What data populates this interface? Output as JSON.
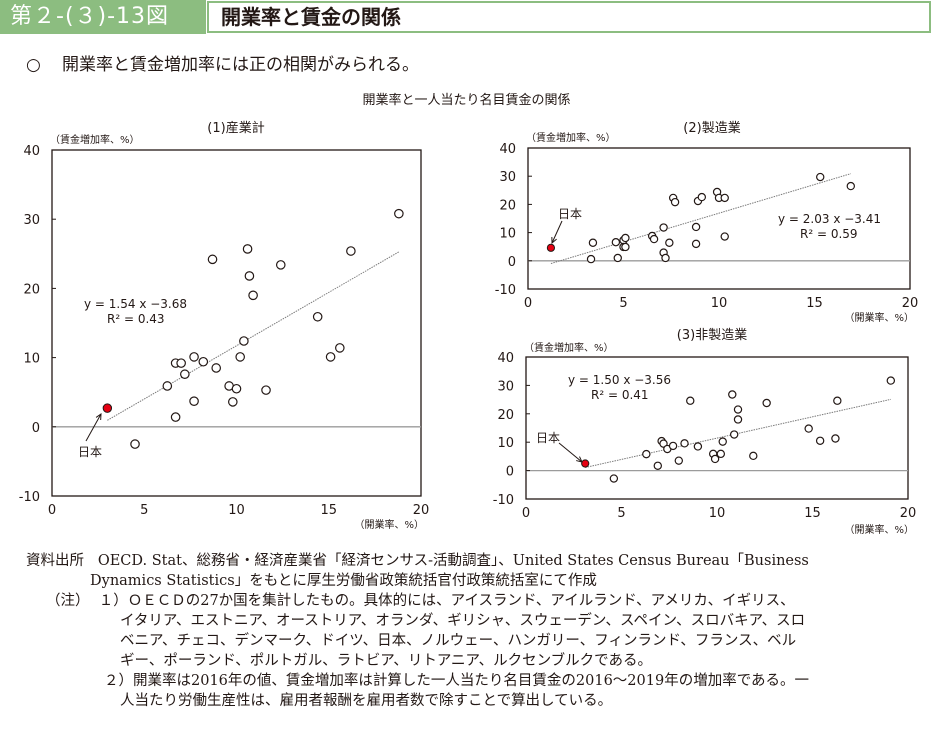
{
  "header": {
    "figure_number": "第２-(３)-13図",
    "title": "開業率と賃金の関係"
  },
  "summary": {
    "bullet": "○",
    "text": "開業率と賃金増加率には正の相関がみられる。"
  },
  "overall_title": "開業率と一人当たり名目賃金の関係",
  "chart_data": [
    {
      "type": "scatter",
      "title": "(1)産業計",
      "xlabel": "（開業率、%）",
      "ylabel": "（賃金増加率、%）",
      "xlim": [
        0,
        20
      ],
      "ylim": [
        -10,
        40
      ],
      "xticks": [
        "0",
        "5",
        "10",
        "15",
        "20"
      ],
      "yticks": [
        "-10",
        "0",
        "10",
        "20",
        "30",
        "40"
      ],
      "grid": false,
      "trendline": {
        "slope": 1.54,
        "intercept": -3.68,
        "x_range": [
          3.0,
          18.8
        ]
      },
      "equation": "y = 1.54 x −3.68",
      "r2": "R² = 0.43",
      "highlight": {
        "label": "日本",
        "x": 3.0,
        "y": 2.7,
        "color": "#e60012"
      },
      "points": [
        [
          4.5,
          -2.5
        ],
        [
          6.25,
          5.9
        ],
        [
          6.7,
          1.4
        ],
        [
          6.7,
          9.2
        ],
        [
          7.0,
          9.2
        ],
        [
          7.2,
          7.6
        ],
        [
          7.7,
          10.1
        ],
        [
          7.7,
          3.7
        ],
        [
          8.2,
          9.4
        ],
        [
          8.7,
          24.2
        ],
        [
          8.9,
          8.5
        ],
        [
          9.6,
          5.9
        ],
        [
          9.8,
          3.6
        ],
        [
          10.0,
          5.5
        ],
        [
          10.2,
          10.1
        ],
        [
          10.4,
          12.4
        ],
        [
          10.6,
          25.7
        ],
        [
          10.7,
          21.8
        ],
        [
          10.9,
          19.0
        ],
        [
          11.6,
          5.3
        ],
        [
          12.4,
          23.4
        ],
        [
          14.4,
          15.9
        ],
        [
          15.1,
          10.1
        ],
        [
          15.6,
          11.4
        ],
        [
          16.2,
          25.4
        ],
        [
          18.8,
          30.8
        ]
      ]
    },
    {
      "type": "scatter",
      "title": "(2)製造業",
      "xlabel": "（開業率、%）",
      "ylabel": "（賃金増加率、%）",
      "xlim": [
        0,
        20
      ],
      "ylim": [
        -10,
        40
      ],
      "xticks": [
        "0",
        "5",
        "10",
        "15",
        "20"
      ],
      "yticks": [
        "-10",
        "0",
        "10",
        "20",
        "30",
        "40"
      ],
      "grid": false,
      "trendline": {
        "slope": 2.03,
        "intercept": -3.41,
        "x_range": [
          1.2,
          16.9
        ]
      },
      "equation": "y = 2.03 x −3.41",
      "r2": "R² = 0.59",
      "highlight": {
        "label": "日本",
        "x": 1.2,
        "y": 4.6,
        "color": "#e60012"
      },
      "points": [
        [
          3.3,
          0.6
        ],
        [
          3.4,
          6.4
        ],
        [
          4.6,
          6.6
        ],
        [
          4.7,
          1.0
        ],
        [
          5.0,
          7.3
        ],
        [
          5.0,
          4.9
        ],
        [
          5.1,
          8.1
        ],
        [
          5.1,
          4.9
        ],
        [
          6.5,
          8.8
        ],
        [
          6.6,
          7.7
        ],
        [
          7.1,
          11.8
        ],
        [
          7.1,
          2.9
        ],
        [
          7.2,
          1.0
        ],
        [
          7.4,
          6.4
        ],
        [
          7.6,
          22.3
        ],
        [
          7.7,
          20.8
        ],
        [
          8.8,
          12.0
        ],
        [
          8.8,
          6.0
        ],
        [
          8.9,
          21.2
        ],
        [
          9.1,
          22.6
        ],
        [
          9.9,
          24.4
        ],
        [
          10.0,
          22.3
        ],
        [
          10.3,
          22.3
        ],
        [
          10.3,
          8.6
        ],
        [
          15.3,
          29.7
        ],
        [
          16.9,
          26.5
        ]
      ]
    },
    {
      "type": "scatter",
      "title": "(3)非製造業",
      "xlabel": "（開業率、%）",
      "ylabel": "（賃金増加率、%）",
      "xlim": [
        0,
        20
      ],
      "ylim": [
        -10,
        40
      ],
      "xticks": [
        "0",
        "5",
        "10",
        "15",
        "20"
      ],
      "yticks": [
        "-10",
        "0",
        "10",
        "20",
        "30",
        "40"
      ],
      "grid": false,
      "trendline": {
        "slope": 1.5,
        "intercept": -3.56,
        "x_range": [
          3.1,
          19.1
        ]
      },
      "equation": "y = 1.50 x −3.56",
      "r2": "R² = 0.41",
      "highlight": {
        "label": "日本",
        "x": 3.1,
        "y": 2.5,
        "color": "#e60012"
      },
      "points": [
        [
          4.6,
          -2.8
        ],
        [
          6.3,
          5.8
        ],
        [
          6.9,
          1.7
        ],
        [
          7.1,
          10.4
        ],
        [
          7.2,
          9.5
        ],
        [
          7.4,
          7.6
        ],
        [
          7.7,
          8.7
        ],
        [
          8.0,
          3.5
        ],
        [
          8.3,
          9.6
        ],
        [
          8.6,
          24.6
        ],
        [
          9.0,
          8.5
        ],
        [
          9.8,
          5.9
        ],
        [
          9.9,
          4.1
        ],
        [
          10.2,
          5.9
        ],
        [
          10.3,
          10.2
        ],
        [
          10.8,
          26.8
        ],
        [
          10.9,
          12.7
        ],
        [
          11.1,
          21.5
        ],
        [
          11.1,
          18.0
        ],
        [
          11.9,
          5.2
        ],
        [
          12.6,
          23.8
        ],
        [
          14.8,
          14.8
        ],
        [
          15.4,
          10.5
        ],
        [
          16.2,
          11.3
        ],
        [
          16.3,
          24.6
        ],
        [
          19.1,
          31.7
        ]
      ]
    }
  ],
  "notes": {
    "source_label": "資料出所",
    "source_line1": "OECD. Stat、総務省・経済産業省「経済センサス-活動調査」、United States Census Bureau「Business",
    "source_line2": "Dynamics Statistics」をもとに厚生労働省政策統括官付政策統括室にて作成",
    "note_label": "（注）",
    "note1_line1": "１）ＯＥＣＤの27か国を集計したもの。具体的には、アイスランド、アイルランド、アメリカ、イギリス、",
    "note1_line2": "イタリア、エストニア、オーストリア、オランダ、ギリシャ、スウェーデン、スペイン、スロバキア、スロ",
    "note1_line3": "ベニア、チェコ、デンマーク、ドイツ、日本、ノルウェー、ハンガリー、フィンランド、フランス、ベル",
    "note1_line4": "ギー、ポーランド、ポルトガル、ラトビア、リトアニア、ルクセンブルクである。",
    "note2_line1": "２）開業率は2016年の値、賃金増加率は計算した一人当たり名目賃金の2016～2019年の増加率である。一",
    "note2_line2": "人当たり労働生産性は、雇用者報酬を雇用者数で除すことで算出している。"
  }
}
